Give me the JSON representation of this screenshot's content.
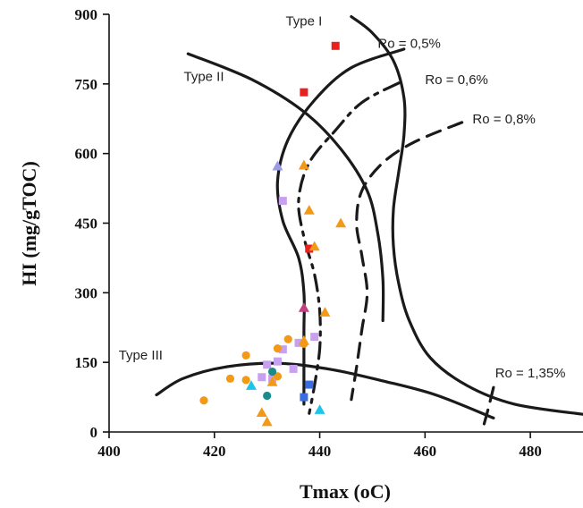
{
  "chart_data": {
    "type": "scatter",
    "title": "",
    "xlabel": "Tmax (oC)",
    "ylabel": "HI (mg/gTOC)",
    "xlim": [
      400,
      490
    ],
    "ylim": [
      0,
      900
    ],
    "x_ticks": [
      400,
      420,
      440,
      460,
      480
    ],
    "y_ticks": [
      0,
      150,
      300,
      450,
      600,
      750,
      900
    ],
    "grid": false,
    "annotations": [
      {
        "text": "Type I",
        "x": 437,
        "y": 876
      },
      {
        "text": "Type II",
        "x": 418,
        "y": 756
      },
      {
        "text": "Type III",
        "x": 406,
        "y": 156
      },
      {
        "text": "Ro = 0,5%",
        "x": 457,
        "y": 828
      },
      {
        "text": "Ro = 0,6%",
        "x": 466,
        "y": 750
      },
      {
        "text": "Ro = 0,8%",
        "x": 475,
        "y": 665
      },
      {
        "text": "Ro = 1,35%",
        "x": 480,
        "y": 118
      }
    ],
    "reference_curves": [
      {
        "name": "Type I",
        "style": "solid",
        "points": [
          [
            446,
            895
          ],
          [
            450,
            860
          ],
          [
            454,
            800
          ],
          [
            456,
            720
          ],
          [
            456,
            640
          ],
          [
            455,
            560
          ],
          [
            454,
            480
          ],
          [
            454,
            400
          ],
          [
            455,
            320
          ],
          [
            457,
            240
          ],
          [
            461,
            160
          ],
          [
            468,
            100
          ],
          [
            477,
            60
          ],
          [
            490,
            38
          ]
        ]
      },
      {
        "name": "Type II",
        "style": "solid",
        "points": [
          [
            415,
            815
          ],
          [
            427,
            760
          ],
          [
            437,
            690
          ],
          [
            444,
            610
          ],
          [
            449,
            520
          ],
          [
            451,
            430
          ],
          [
            452,
            330
          ],
          [
            452,
            240
          ]
        ]
      },
      {
        "name": "Type III",
        "style": "solid",
        "points": [
          [
            409,
            80
          ],
          [
            414,
            115
          ],
          [
            422,
            140
          ],
          [
            432,
            148
          ],
          [
            442,
            135
          ],
          [
            452,
            110
          ],
          [
            462,
            80
          ],
          [
            473,
            30
          ]
        ]
      },
      {
        "name": "Ro = 0,5%",
        "style": "solid",
        "points": [
          [
            456,
            825
          ],
          [
            446,
            785
          ],
          [
            439,
            715
          ],
          [
            434,
            630
          ],
          [
            432,
            540
          ],
          [
            433,
            455
          ],
          [
            436,
            375
          ],
          [
            437,
            300
          ],
          [
            437,
            220
          ],
          [
            437,
            140
          ],
          [
            437,
            60
          ]
        ]
      },
      {
        "name": "Ro = 0,6%",
        "style": "dashdot",
        "points": [
          [
            455,
            752
          ],
          [
            448,
            710
          ],
          [
            443,
            650
          ],
          [
            438,
            580
          ],
          [
            436,
            500
          ],
          [
            437,
            420
          ],
          [
            439,
            340
          ],
          [
            440,
            260
          ],
          [
            440,
            180
          ],
          [
            439,
            100
          ],
          [
            438,
            40
          ]
        ]
      },
      {
        "name": "Ro = 0,8%",
        "style": "dashed",
        "points": [
          [
            467,
            667
          ],
          [
            458,
            625
          ],
          [
            452,
            580
          ],
          [
            448,
            520
          ],
          [
            447,
            450
          ],
          [
            448,
            380
          ],
          [
            449,
            300
          ],
          [
            448,
            220
          ],
          [
            447,
            140
          ],
          [
            446,
            70
          ]
        ]
      },
      {
        "name": "Ro = 1,35%",
        "style": "dashed",
        "points": [
          [
            473,
            96
          ],
          [
            472,
            50
          ],
          [
            471,
            8
          ]
        ]
      }
    ],
    "series": [
      {
        "marker": "square",
        "color": "#e8211f",
        "points": [
          [
            443,
            832
          ],
          [
            437,
            732
          ],
          [
            438,
            395
          ]
        ]
      },
      {
        "marker": "square",
        "color": "#c8a0f0",
        "points": [
          [
            433,
            498
          ],
          [
            439,
            205
          ],
          [
            436,
            192
          ],
          [
            433,
            178
          ],
          [
            432,
            152
          ],
          [
            430,
            145
          ],
          [
            429,
            118
          ],
          [
            431,
            115
          ],
          [
            435,
            136
          ]
        ]
      },
      {
        "marker": "square",
        "color": "#3a6de0",
        "points": [
          [
            438,
            102
          ],
          [
            437,
            75
          ]
        ]
      },
      {
        "marker": "triangle",
        "color": "#f29a18",
        "points": [
          [
            437,
            575
          ],
          [
            438,
            478
          ],
          [
            444,
            450
          ],
          [
            439,
            400
          ],
          [
            441,
            258
          ],
          [
            437,
            197
          ],
          [
            431,
            108
          ],
          [
            429,
            42
          ],
          [
            430,
            22
          ]
        ]
      },
      {
        "marker": "triangle",
        "color": "#9a9ae8",
        "points": [
          [
            432,
            573
          ]
        ]
      },
      {
        "marker": "triangle",
        "color": "#1fc4e8",
        "points": [
          [
            427,
            100
          ],
          [
            440,
            48
          ]
        ]
      },
      {
        "marker": "triangle",
        "color": "#c04080",
        "points": [
          [
            437,
            268
          ]
        ]
      },
      {
        "marker": "circle",
        "color": "#f29a18",
        "points": [
          [
            418,
            68
          ],
          [
            423,
            115
          ],
          [
            426,
            112
          ],
          [
            426,
            165
          ],
          [
            432,
            180
          ],
          [
            432,
            120
          ],
          [
            437,
            190
          ],
          [
            434,
            200
          ]
        ]
      },
      {
        "marker": "circle",
        "color": "#1a8c8c",
        "points": [
          [
            431,
            130
          ],
          [
            430,
            78
          ]
        ]
      }
    ]
  }
}
